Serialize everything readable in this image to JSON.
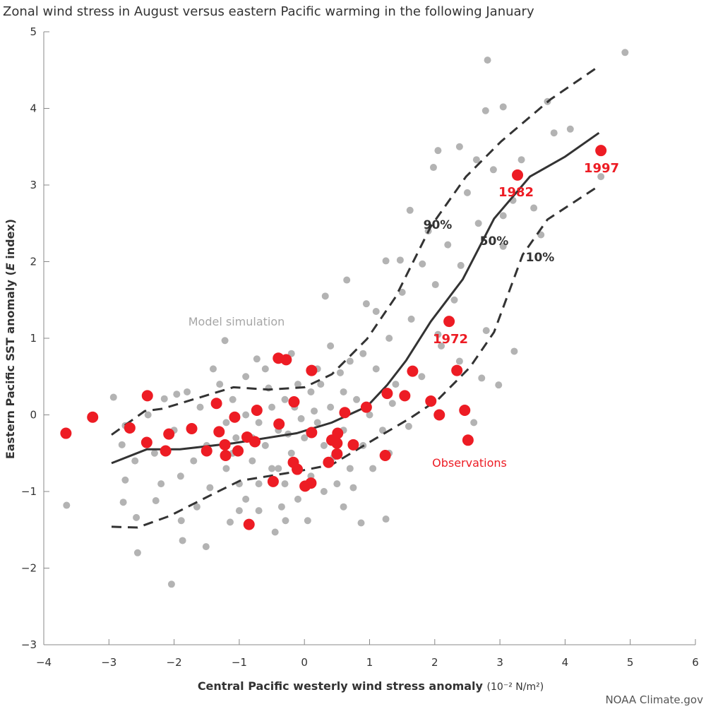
{
  "chart_data": {
    "type": "scatter",
    "title": "Zonal wind stress in August versus eastern Pacific warming in the following January",
    "xlabel": "Central Pacific westerly wind stress anomaly",
    "xlabel_unit": "(10⁻² N/m²)",
    "ylabel_pre": "Eastern Pacific SST anomaly (",
    "ylabel_italic": "E",
    "ylabel_post": " index)",
    "xlim": [
      -4,
      6
    ],
    "ylim": [
      -3,
      5
    ],
    "xticks": [
      -4,
      -3,
      -2,
      -1,
      0,
      1,
      2,
      3,
      4,
      5,
      6
    ],
    "yticks": [
      -3,
      -2,
      -1,
      0,
      1,
      2,
      3,
      4,
      5
    ],
    "grid": false,
    "credit": "NOAA Climate.gov",
    "colors": {
      "model": "#b3b3b3",
      "observations": "#ed1c24",
      "percentile": "#333333"
    },
    "annotations": {
      "model": "Model simulation",
      "observations": "Observations",
      "p90": "90%",
      "p50": "50%",
      "p10": "10%",
      "y1972": "1972",
      "y1982": "1982",
      "y1997": "1997"
    },
    "model_points": [
      [
        2.81,
        4.63
      ],
      [
        4.92,
        4.73
      ],
      [
        3.05,
        4.02
      ],
      [
        2.78,
        3.97
      ],
      [
        3.73,
        4.09
      ],
      [
        4.08,
        3.73
      ],
      [
        3.83,
        3.68
      ],
      [
        2.38,
        3.5
      ],
      [
        2.05,
        3.45
      ],
      [
        1.98,
        3.23
      ],
      [
        2.64,
        3.33
      ],
      [
        3.33,
        3.33
      ],
      [
        3.52,
        2.7
      ],
      [
        4.55,
        3.11
      ],
      [
        3.05,
        2.6
      ],
      [
        2.67,
        2.5
      ],
      [
        1.62,
        2.67
      ],
      [
        2.2,
        2.22
      ],
      [
        3.05,
        2.2
      ],
      [
        3.63,
        2.35
      ],
      [
        1.47,
        2.02
      ],
      [
        1.25,
        2.01
      ],
      [
        1.81,
        1.97
      ],
      [
        2.4,
        1.95
      ],
      [
        2.01,
        1.7
      ],
      [
        0.65,
        1.76
      ],
      [
        0.32,
        1.55
      ],
      [
        0.95,
        1.45
      ],
      [
        1.1,
        1.35
      ],
      [
        1.64,
        1.25
      ],
      [
        2.05,
        1.05
      ],
      [
        2.79,
        1.1
      ],
      [
        3.22,
        0.83
      ],
      [
        2.98,
        0.39
      ],
      [
        2.72,
        0.48
      ],
      [
        2.38,
        0.7
      ],
      [
        1.3,
        1.0
      ],
      [
        -1.22,
        0.97
      ],
      [
        -0.73,
        0.73
      ],
      [
        -2.93,
        0.23
      ],
      [
        -1.96,
        0.27
      ],
      [
        -2.15,
        0.21
      ],
      [
        -2.75,
        -0.14
      ],
      [
        -2.8,
        -0.39
      ],
      [
        -2.75,
        -0.85
      ],
      [
        -2.78,
        -1.14
      ],
      [
        -3.65,
        -1.18
      ],
      [
        -2.58,
        -1.34
      ],
      [
        -2.56,
        -1.8
      ],
      [
        -2.04,
        -2.21
      ],
      [
        -1.87,
        -1.64
      ],
      [
        -1.51,
        -1.72
      ],
      [
        -1.89,
        -1.38
      ],
      [
        -2.28,
        -1.12
      ],
      [
        -1.14,
        -1.4
      ],
      [
        -0.45,
        -1.53
      ],
      [
        -0.29,
        -1.38
      ],
      [
        0.05,
        -1.38
      ],
      [
        0.87,
        -1.41
      ],
      [
        1.25,
        -1.36
      ],
      [
        0.6,
        -1.2
      ],
      [
        -0.7,
        -1.25
      ],
      [
        1.3,
        -0.5
      ],
      [
        1.6,
        -0.15
      ],
      [
        2.6,
        -0.1
      ],
      [
        3.2,
        2.8
      ],
      [
        2.9,
        3.2
      ],
      [
        2.5,
        2.9
      ],
      [
        1.9,
        2.4
      ],
      [
        2.3,
        1.5
      ],
      [
        1.5,
        1.6
      ],
      [
        0.9,
        0.8
      ],
      [
        1.1,
        0.6
      ],
      [
        1.4,
        0.4
      ],
      [
        0.7,
        0.7
      ],
      [
        0.4,
        0.9
      ],
      [
        0.2,
        0.6
      ],
      [
        -0.1,
        0.4
      ],
      [
        -0.3,
        0.2
      ],
      [
        -0.5,
        0.1
      ],
      [
        -0.7,
        -0.1
      ],
      [
        -0.9,
        0.0
      ],
      [
        -1.1,
        0.2
      ],
      [
        -1.3,
        -0.2
      ],
      [
        -1.5,
        -0.4
      ],
      [
        -1.7,
        -0.6
      ],
      [
        -1.9,
        -0.8
      ],
      [
        -1.2,
        -0.7
      ],
      [
        -1.0,
        -0.9
      ],
      [
        -0.8,
        -0.6
      ],
      [
        -0.6,
        -0.4
      ],
      [
        -0.4,
        -0.2
      ],
      [
        -0.2,
        -0.5
      ],
      [
        0.0,
        -0.3
      ],
      [
        0.2,
        -0.1
      ],
      [
        0.4,
        0.1
      ],
      [
        0.6,
        0.3
      ],
      [
        0.8,
        0.2
      ],
      [
        1.0,
        0.0
      ],
      [
        1.2,
        -0.2
      ],
      [
        0.9,
        -0.4
      ],
      [
        0.7,
        -0.7
      ],
      [
        0.5,
        -0.9
      ],
      [
        0.3,
        -1.0
      ],
      [
        0.1,
        -0.8
      ],
      [
        -0.1,
        -1.1
      ],
      [
        -0.3,
        -0.9
      ],
      [
        -0.5,
        -0.7
      ],
      [
        -0.7,
        -0.9
      ],
      [
        -0.9,
        -1.1
      ],
      [
        -1.1,
        -0.5
      ],
      [
        -1.3,
        0.4
      ],
      [
        -1.6,
        0.1
      ],
      [
        -2.0,
        -0.2
      ],
      [
        -2.3,
        -0.5
      ],
      [
        -2.4,
        0.0
      ],
      [
        -1.8,
        0.3
      ],
      [
        -1.4,
        0.6
      ],
      [
        -0.9,
        0.5
      ],
      [
        -0.6,
        0.6
      ],
      [
        -0.2,
        0.8
      ],
      [
        0.1,
        0.3
      ],
      [
        0.3,
        -0.4
      ],
      [
        0.6,
        -0.2
      ],
      [
        -0.4,
        -0.7
      ],
      [
        -0.8,
        -0.3
      ],
      [
        -1.2,
        -0.1
      ],
      [
        -0.15,
        0.1
      ],
      [
        0.25,
        0.4
      ],
      [
        0.55,
        0.55
      ],
      [
        -0.55,
        0.35
      ],
      [
        -1.05,
        -0.3
      ],
      [
        -1.45,
        -0.95
      ],
      [
        -0.35,
        -1.2
      ],
      [
        0.75,
        -0.95
      ],
      [
        1.05,
        -0.7
      ],
      [
        1.35,
        0.15
      ],
      [
        1.8,
        0.5
      ],
      [
        2.1,
        0.9
      ],
      [
        -2.6,
        -0.6
      ],
      [
        -2.2,
        -0.9
      ],
      [
        -1.65,
        -1.2
      ],
      [
        -1.0,
        -1.25
      ],
      [
        0.45,
        -0.55
      ],
      [
        -0.05,
        -0.05
      ],
      [
        -0.25,
        -0.25
      ],
      [
        0.15,
        0.05
      ]
    ],
    "observations": [
      [
        -3.66,
        -0.24
      ],
      [
        -3.25,
        -0.03
      ],
      [
        -2.41,
        0.25
      ],
      [
        -2.68,
        -0.17
      ],
      [
        -2.42,
        -0.36
      ],
      [
        -2.08,
        -0.25
      ],
      [
        -2.13,
        -0.47
      ],
      [
        -1.73,
        -0.18
      ],
      [
        -1.35,
        0.15
      ],
      [
        -1.31,
        -0.22
      ],
      [
        -1.5,
        -0.47
      ],
      [
        -1.22,
        -0.39
      ],
      [
        -1.21,
        -0.53
      ],
      [
        -1.07,
        -0.03
      ],
      [
        -1.02,
        -0.47
      ],
      [
        -0.73,
        0.06
      ],
      [
        -0.88,
        -0.29
      ],
      [
        -0.76,
        -0.35
      ],
      [
        -0.85,
        -1.43
      ],
      [
        -0.4,
        0.74
      ],
      [
        -0.28,
        0.72
      ],
      [
        -0.39,
        -0.12
      ],
      [
        -0.16,
        0.17
      ],
      [
        0.11,
        0.58
      ],
      [
        0.11,
        -0.23
      ],
      [
        -0.48,
        -0.87
      ],
      [
        -0.17,
        -0.62
      ],
      [
        -0.11,
        -0.71
      ],
      [
        0.01,
        -0.93
      ],
      [
        0.1,
        -0.89
      ],
      [
        0.62,
        0.03
      ],
      [
        0.95,
        0.1
      ],
      [
        1.27,
        0.28
      ],
      [
        1.54,
        0.25
      ],
      [
        1.66,
        0.57
      ],
      [
        2.34,
        0.58
      ],
      [
        1.94,
        0.18
      ],
      [
        2.07,
        0.0
      ],
      [
        2.46,
        0.06
      ],
      [
        2.51,
        -0.33
      ],
      [
        1.24,
        -0.53
      ],
      [
        0.75,
        -0.39
      ],
      [
        0.5,
        -0.51
      ],
      [
        0.51,
        -0.24
      ],
      [
        0.42,
        -0.33
      ],
      [
        0.5,
        -0.37
      ],
      [
        0.37,
        -0.62
      ],
      [
        2.22,
        1.22
      ],
      [
        3.27,
        3.13
      ],
      [
        4.55,
        3.45
      ]
    ],
    "series": [
      {
        "name": "90%",
        "style": "dashed",
        "points": [
          [
            -2.96,
            -0.26
          ],
          [
            -2.45,
            0.05
          ],
          [
            -2.18,
            0.08
          ],
          [
            -1.09,
            0.36
          ],
          [
            -0.55,
            0.33
          ],
          [
            0.0,
            0.36
          ],
          [
            0.42,
            0.53
          ],
          [
            0.96,
            0.99
          ],
          [
            1.4,
            1.54
          ],
          [
            1.94,
            2.46
          ],
          [
            2.48,
            3.11
          ],
          [
            3.02,
            3.57
          ],
          [
            3.78,
            4.12
          ],
          [
            4.52,
            4.55
          ]
        ]
      },
      {
        "name": "50%",
        "style": "solid",
        "points": [
          [
            -2.96,
            -0.63
          ],
          [
            -2.42,
            -0.45
          ],
          [
            -1.91,
            -0.45
          ],
          [
            -1.09,
            -0.37
          ],
          [
            -0.12,
            -0.24
          ],
          [
            0.42,
            -0.1
          ],
          [
            0.96,
            0.11
          ],
          [
            1.27,
            0.39
          ],
          [
            1.56,
            0.71
          ],
          [
            1.94,
            1.22
          ],
          [
            2.43,
            1.77
          ],
          [
            2.91,
            2.56
          ],
          [
            3.46,
            3.11
          ],
          [
            4.0,
            3.37
          ],
          [
            4.52,
            3.68
          ]
        ]
      },
      {
        "name": "10%",
        "style": "dashed",
        "points": [
          [
            -2.96,
            -1.46
          ],
          [
            -2.56,
            -1.47
          ],
          [
            -2.07,
            -1.32
          ],
          [
            -1.42,
            -1.04
          ],
          [
            -0.99,
            -0.86
          ],
          [
            -0.12,
            -0.74
          ],
          [
            0.42,
            -0.65
          ],
          [
            1.07,
            -0.32
          ],
          [
            1.61,
            -0.05
          ],
          [
            2.05,
            0.2
          ],
          [
            2.54,
            0.62
          ],
          [
            2.91,
            1.08
          ],
          [
            3.35,
            2.09
          ],
          [
            3.73,
            2.55
          ],
          [
            4.52,
            2.99
          ]
        ]
      }
    ]
  }
}
